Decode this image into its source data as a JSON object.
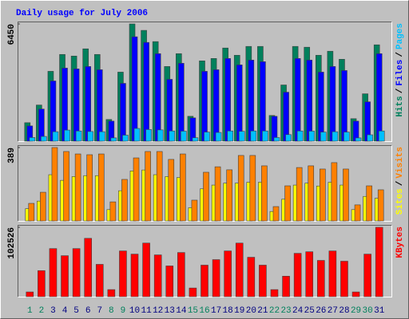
{
  "chart_data": {
    "type": "bar",
    "title": "Daily usage for July 2006",
    "categories": [
      "1",
      "2",
      "3",
      "4",
      "5",
      "6",
      "7",
      "8",
      "9",
      "10",
      "11",
      "12",
      "13",
      "14",
      "15",
      "16",
      "17",
      "18",
      "19",
      "20",
      "21",
      "22",
      "23",
      "24",
      "25",
      "26",
      "27",
      "28",
      "29",
      "30",
      "31"
    ],
    "category_colors": [
      "#00805c",
      "#00805c",
      "#000080",
      "#000080",
      "#000080",
      "#000080",
      "#000080",
      "#00805c",
      "#00805c",
      "#000080",
      "#000080",
      "#000080",
      "#000080",
      "#000080",
      "#00805c",
      "#00805c",
      "#000080",
      "#000080",
      "#000080",
      "#000080",
      "#000080",
      "#00805c",
      "#00805c",
      "#000080",
      "#000080",
      "#000080",
      "#000080",
      "#000080",
      "#00805c",
      "#00805c",
      "#000080"
    ],
    "legend_separator": "/",
    "panels": [
      {
        "ylim": [
          0,
          6450
        ],
        "yticks": [
          6450
        ],
        "series": [
          {
            "name": "Hits",
            "color": "#00805c",
            "values": [
              1016,
              1988,
              3843,
              4771,
              4683,
              5080,
              4771,
              1193,
              3799,
              6450,
              6096,
              5478,
              4108,
              4815,
              1369,
              4418,
              4550,
              5125,
              4727,
              5213,
              5213,
              1414,
              3092,
              5213,
              5169,
              4727,
              4948,
              4506,
              1237,
              2606,
              5301
            ]
          },
          {
            "name": "Files",
            "color": "#0000ff",
            "values": [
              839,
              1767,
              3313,
              4020,
              3976,
              4108,
              3932,
              1104,
              3181,
              5743,
              5434,
              4815,
              3402,
              4285,
              1281,
              3843,
              3932,
              4550,
              4197,
              4462,
              4373,
              1369,
              2695,
              4550,
              4462,
              3799,
              4108,
              3887,
              1104,
              2165,
              4815
            ]
          },
          {
            "name": "Pages",
            "color": "#00c0ff",
            "values": [
              200,
              260,
              520,
              610,
              560,
              530,
              520,
              180,
              330,
              700,
              640,
              620,
              560,
              550,
              190,
              500,
              480,
              560,
              540,
              560,
              560,
              200,
              360,
              560,
              550,
              500,
              520,
              500,
              180,
              350,
              560
            ]
          }
        ]
      },
      {
        "ylim": [
          0,
          389
        ],
        "yticks": [
          389
        ],
        "series": [
          {
            "name": "Sites",
            "color": "#ffff00",
            "values": [
              65,
              105,
              245,
              215,
              235,
              240,
              240,
              60,
              160,
              265,
              270,
              245,
              235,
              230,
              70,
              170,
              190,
              200,
              200,
              205,
              205,
              50,
              115,
              190,
              200,
              185,
              205,
              190,
              60,
              130,
              120
            ]
          },
          {
            "name": "Visits",
            "color": "#ff8000",
            "values": [
              93,
              152,
              389,
              368,
              355,
              351,
              355,
              101,
              220,
              334,
              368,
              368,
              326,
              355,
              110,
              258,
              287,
              271,
              347,
              347,
              292,
              76,
              186,
              283,
              292,
              275,
              309,
              275,
              85,
              186,
              165
            ]
          }
        ]
      },
      {
        "ylim": [
          0,
          102526
        ],
        "yticks": [
          102526
        ],
        "series": [
          {
            "name": "KBytes",
            "color": "#ff0000",
            "values": [
              6990,
              38447,
              71070,
              60584,
              71070,
              86215,
              47768,
              10486,
              67575,
              62914,
              79225,
              61749,
              45438,
              65245,
              12816,
              46603,
              54758,
              67575,
              79225,
              58254,
              46603,
              10486,
              30292,
              64080,
              66410,
              53593,
              67575,
              52428,
              6990,
              62914,
              102526
            ]
          }
        ]
      }
    ]
  }
}
